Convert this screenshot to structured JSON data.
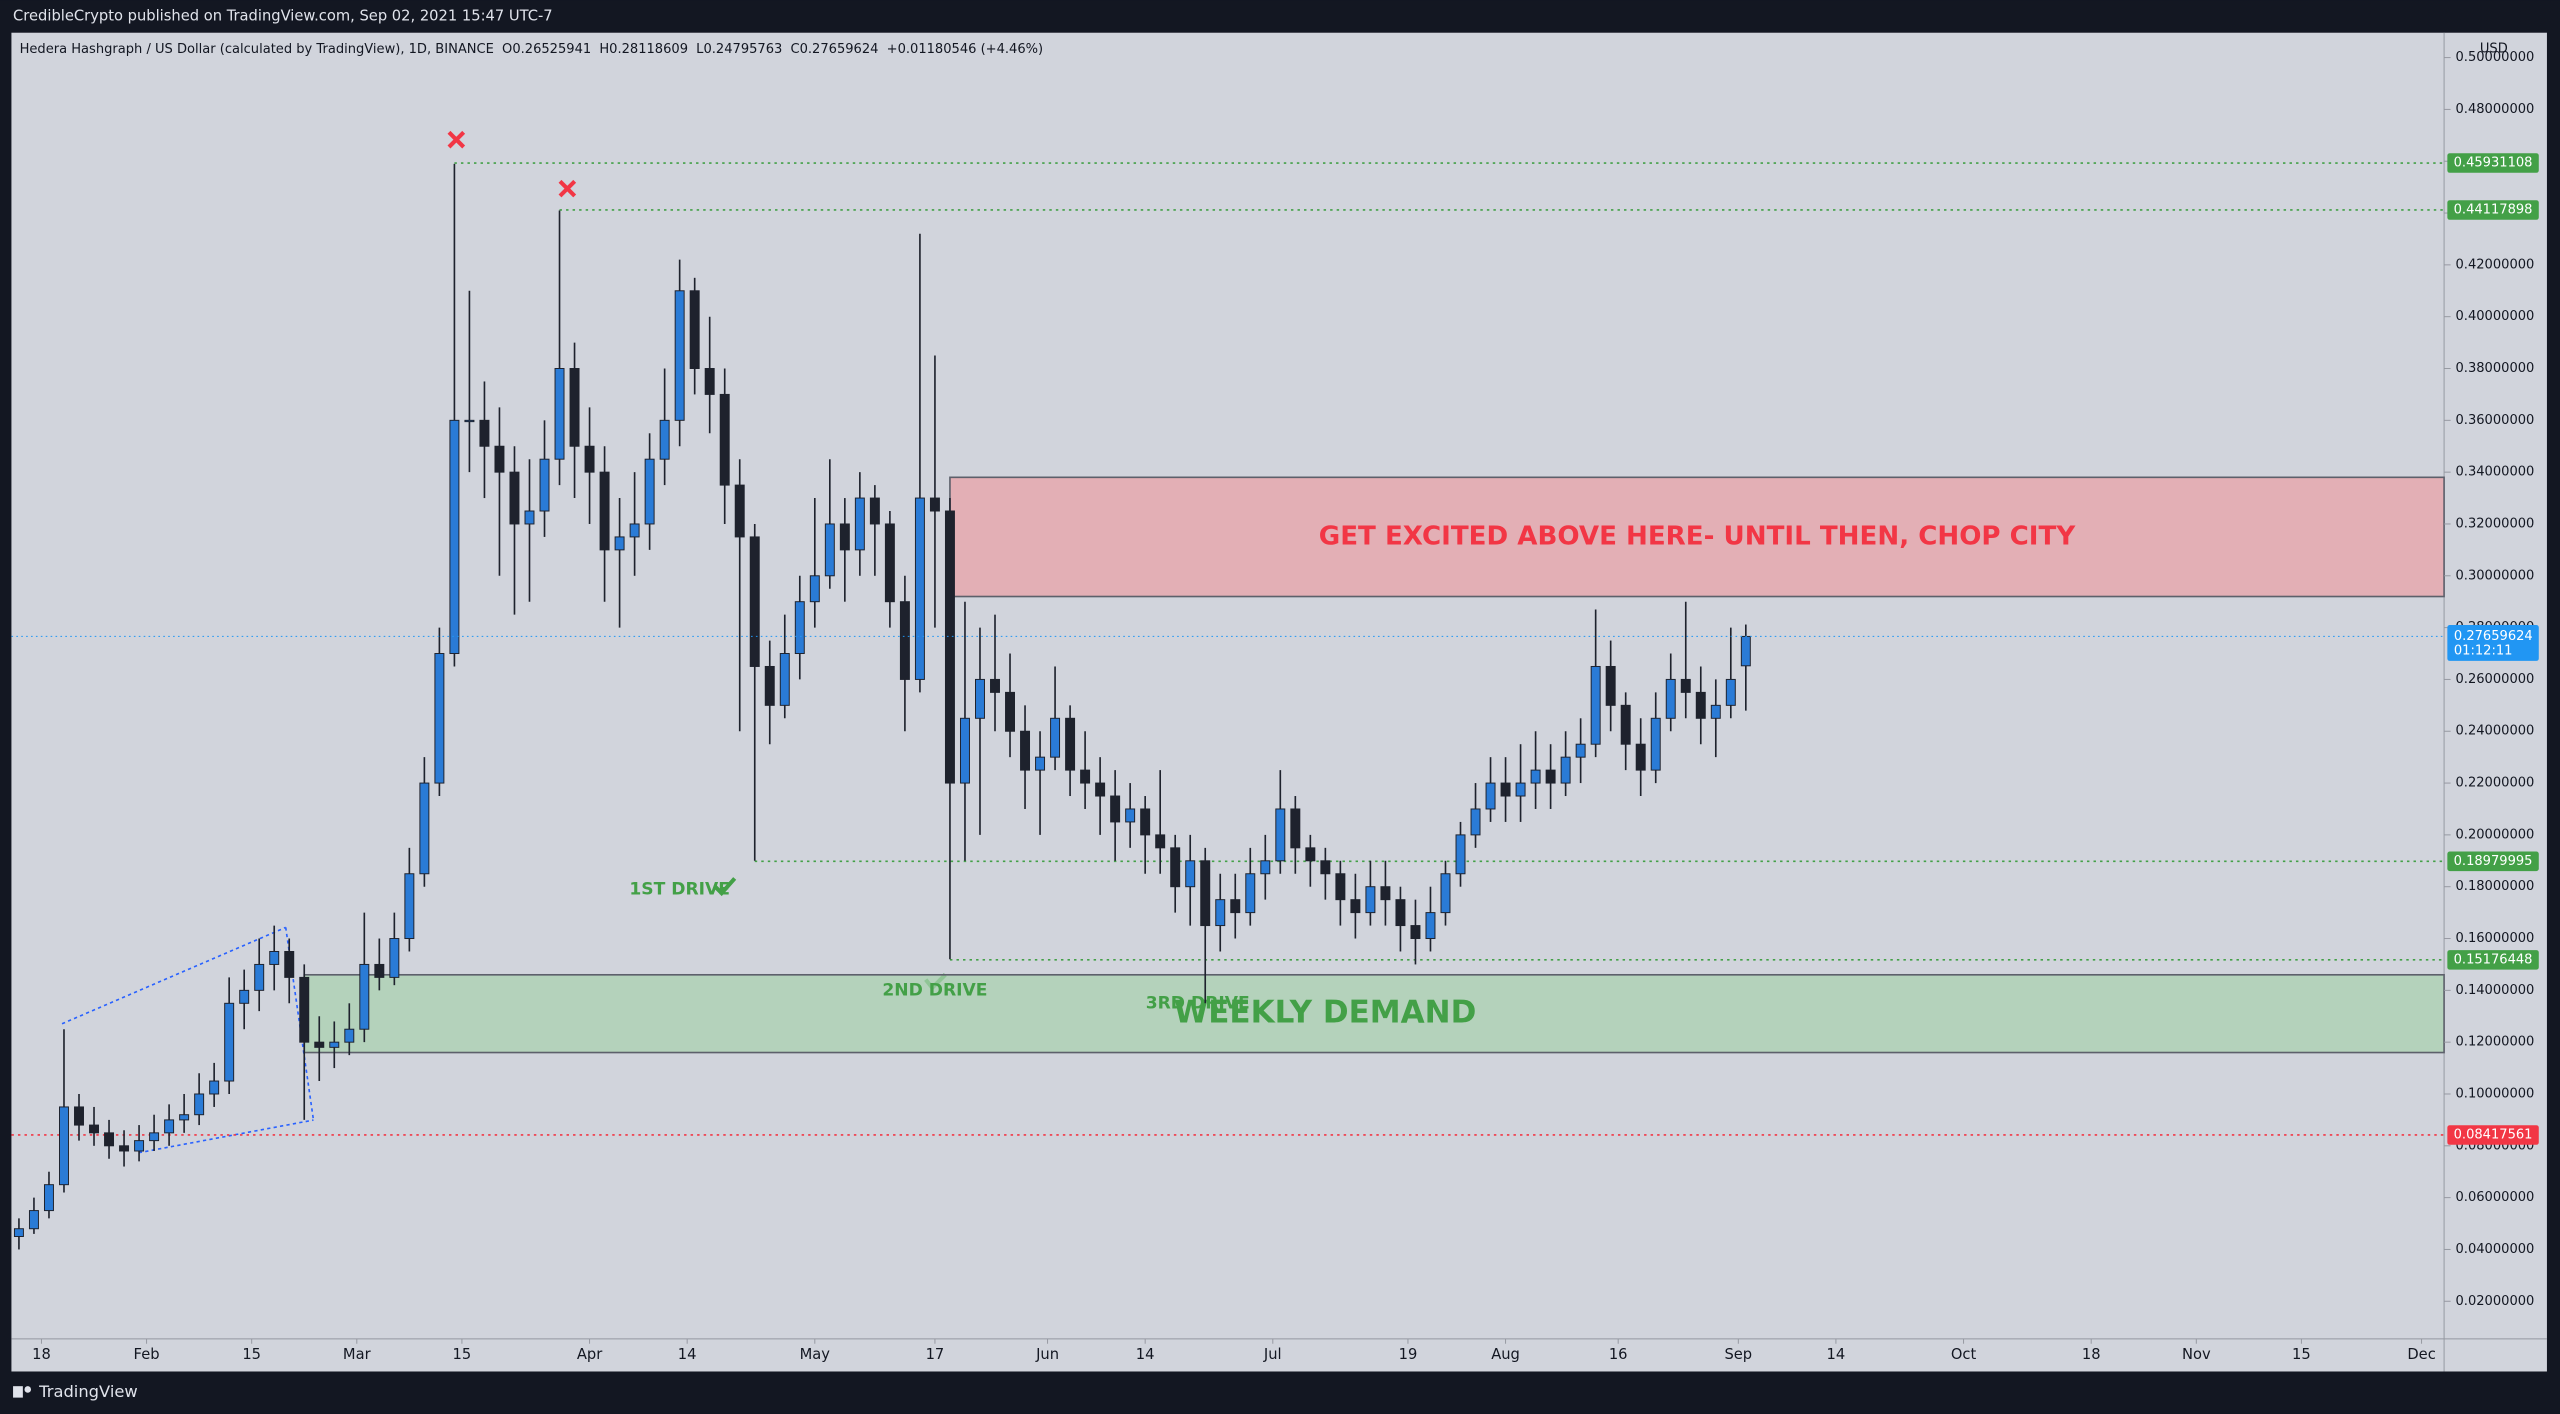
{
  "header": {
    "publisher": "CredibleCrypto published on TradingView.com, Sep 02, 2021 15:47 UTC-7"
  },
  "footer": {
    "brand": "TradingView"
  },
  "chart_data": {
    "type": "candlestick",
    "legend": {
      "symbol": "Hedera Hashgraph / US Dollar (calculated by TradingView), 1D, BINANCE",
      "o": "O",
      "h": "H",
      "l": "L",
      "c": "C",
      "change": "+0.01180546 (+4.46%)"
    },
    "currency": "USD",
    "countdown": "01:12:11",
    "up_color": "#2a7bd6",
    "down_color": "#1e222d",
    "wick_color": "#1e222d",
    "candles": {
      "x": [
        "2021-01-15",
        "2021-01-17",
        "2021-01-19",
        "2021-01-21",
        "2021-01-23",
        "2021-01-25",
        "2021-01-27",
        "2021-01-29",
        "2021-01-31",
        "2021-02-02",
        "2021-02-04",
        "2021-02-06",
        "2021-02-08",
        "2021-02-10",
        "2021-02-12",
        "2021-02-14",
        "2021-02-16",
        "2021-02-18",
        "2021-02-20",
        "2021-02-22",
        "2021-02-24",
        "2021-02-26",
        "2021-02-28",
        "2021-03-02",
        "2021-03-04",
        "2021-03-06",
        "2021-03-08",
        "2021-03-10",
        "2021-03-12",
        "2021-03-14",
        "2021-03-16",
        "2021-03-18",
        "2021-03-20",
        "2021-03-22",
        "2021-03-24",
        "2021-03-26",
        "2021-03-28",
        "2021-03-30",
        "2021-04-01",
        "2021-04-03",
        "2021-04-05",
        "2021-04-07",
        "2021-04-09",
        "2021-04-11",
        "2021-04-13",
        "2021-04-15",
        "2021-04-17",
        "2021-04-19",
        "2021-04-21",
        "2021-04-23",
        "2021-04-25",
        "2021-04-27",
        "2021-04-29",
        "2021-05-01",
        "2021-05-03",
        "2021-05-05",
        "2021-05-07",
        "2021-05-09",
        "2021-05-11",
        "2021-05-13",
        "2021-05-15",
        "2021-05-17",
        "2021-05-19",
        "2021-05-21",
        "2021-05-23",
        "2021-05-25",
        "2021-05-27",
        "2021-05-29",
        "2021-05-31",
        "2021-06-02",
        "2021-06-04",
        "2021-06-06",
        "2021-06-08",
        "2021-06-10",
        "2021-06-12",
        "2021-06-14",
        "2021-06-16",
        "2021-06-18",
        "2021-06-20",
        "2021-06-22",
        "2021-06-24",
        "2021-06-26",
        "2021-06-28",
        "2021-06-30",
        "2021-07-02",
        "2021-07-04",
        "2021-07-06",
        "2021-07-08",
        "2021-07-10",
        "2021-07-12",
        "2021-07-14",
        "2021-07-16",
        "2021-07-18",
        "2021-07-20",
        "2021-07-22",
        "2021-07-24",
        "2021-07-26",
        "2021-07-28",
        "2021-07-30",
        "2021-08-01",
        "2021-08-03",
        "2021-08-05",
        "2021-08-07",
        "2021-08-09",
        "2021-08-11",
        "2021-08-13",
        "2021-08-15",
        "2021-08-17",
        "2021-08-19",
        "2021-08-21",
        "2021-08-23",
        "2021-08-25",
        "2021-08-27",
        "2021-08-29",
        "2021-08-31",
        "2021-09-02"
      ],
      "open": [
        0.045,
        0.048,
        0.055,
        0.065,
        0.095,
        0.088,
        0.085,
        0.08,
        0.078,
        0.082,
        0.085,
        0.09,
        0.092,
        0.1,
        0.105,
        0.135,
        0.14,
        0.15,
        0.155,
        0.145,
        0.12,
        0.118,
        0.12,
        0.125,
        0.15,
        0.145,
        0.16,
        0.185,
        0.22,
        0.27,
        0.36,
        0.36,
        0.35,
        0.34,
        0.32,
        0.325,
        0.345,
        0.38,
        0.35,
        0.34,
        0.31,
        0.315,
        0.32,
        0.345,
        0.36,
        0.41,
        0.38,
        0.37,
        0.335,
        0.315,
        0.265,
        0.25,
        0.27,
        0.29,
        0.3,
        0.32,
        0.31,
        0.33,
        0.32,
        0.29,
        0.26,
        0.33,
        0.325,
        0.22,
        0.245,
        0.26,
        0.255,
        0.24,
        0.225,
        0.23,
        0.245,
        0.225,
        0.22,
        0.215,
        0.205,
        0.21,
        0.2,
        0.195,
        0.18,
        0.19,
        0.165,
        0.175,
        0.17,
        0.185,
        0.19,
        0.21,
        0.195,
        0.19,
        0.185,
        0.175,
        0.17,
        0.18,
        0.175,
        0.165,
        0.16,
        0.17,
        0.185,
        0.2,
        0.21,
        0.22,
        0.215,
        0.22,
        0.225,
        0.22,
        0.23,
        0.235,
        0.265,
        0.25,
        0.235,
        0.225,
        0.245,
        0.26,
        0.255,
        0.245,
        0.25,
        0.26525941
      ],
      "high": [
        0.052,
        0.06,
        0.07,
        0.125,
        0.1,
        0.095,
        0.09,
        0.086,
        0.088,
        0.092,
        0.096,
        0.1,
        0.108,
        0.112,
        0.145,
        0.148,
        0.16,
        0.165,
        0.16,
        0.15,
        0.13,
        0.128,
        0.135,
        0.17,
        0.16,
        0.17,
        0.195,
        0.23,
        0.28,
        0.459,
        0.41,
        0.375,
        0.365,
        0.35,
        0.345,
        0.36,
        0.441,
        0.39,
        0.365,
        0.35,
        0.33,
        0.34,
        0.355,
        0.38,
        0.422,
        0.415,
        0.4,
        0.38,
        0.345,
        0.32,
        0.275,
        0.285,
        0.3,
        0.33,
        0.345,
        0.33,
        0.34,
        0.335,
        0.325,
        0.3,
        0.432,
        0.385,
        0.33,
        0.29,
        0.28,
        0.285,
        0.27,
        0.25,
        0.24,
        0.265,
        0.25,
        0.24,
        0.23,
        0.225,
        0.22,
        0.215,
        0.225,
        0.2,
        0.2,
        0.195,
        0.185,
        0.185,
        0.195,
        0.2,
        0.225,
        0.215,
        0.2,
        0.195,
        0.19,
        0.185,
        0.19,
        0.19,
        0.18,
        0.175,
        0.18,
        0.19,
        0.205,
        0.22,
        0.23,
        0.23,
        0.235,
        0.24,
        0.235,
        0.24,
        0.245,
        0.287,
        0.275,
        0.255,
        0.245,
        0.255,
        0.27,
        0.29,
        0.265,
        0.26,
        0.28,
        0.28118609
      ],
      "low": [
        0.04,
        0.046,
        0.052,
        0.062,
        0.082,
        0.08,
        0.075,
        0.072,
        0.074,
        0.078,
        0.08,
        0.085,
        0.088,
        0.095,
        0.1,
        0.125,
        0.132,
        0.14,
        0.135,
        0.09,
        0.105,
        0.11,
        0.115,
        0.12,
        0.14,
        0.142,
        0.155,
        0.18,
        0.215,
        0.265,
        0.34,
        0.33,
        0.3,
        0.285,
        0.29,
        0.315,
        0.335,
        0.33,
        0.32,
        0.29,
        0.28,
        0.3,
        0.31,
        0.335,
        0.35,
        0.37,
        0.355,
        0.32,
        0.24,
        0.19,
        0.235,
        0.245,
        0.26,
        0.28,
        0.295,
        0.29,
        0.3,
        0.3,
        0.28,
        0.24,
        0.255,
        0.28,
        0.152,
        0.19,
        0.2,
        0.24,
        0.23,
        0.21,
        0.2,
        0.225,
        0.215,
        0.21,
        0.2,
        0.19,
        0.195,
        0.185,
        0.185,
        0.17,
        0.165,
        0.135,
        0.155,
        0.16,
        0.165,
        0.175,
        0.185,
        0.185,
        0.18,
        0.175,
        0.165,
        0.16,
        0.165,
        0.165,
        0.155,
        0.15,
        0.155,
        0.165,
        0.18,
        0.195,
        0.205,
        0.205,
        0.205,
        0.21,
        0.21,
        0.215,
        0.22,
        0.23,
        0.24,
        0.225,
        0.215,
        0.22,
        0.24,
        0.245,
        0.235,
        0.23,
        0.245,
        0.24795763
      ],
      "close": [
        0.048,
        0.055,
        0.065,
        0.095,
        0.088,
        0.085,
        0.08,
        0.078,
        0.082,
        0.085,
        0.09,
        0.092,
        0.1,
        0.105,
        0.135,
        0.14,
        0.15,
        0.155,
        0.145,
        0.12,
        0.118,
        0.12,
        0.125,
        0.15,
        0.145,
        0.16,
        0.185,
        0.22,
        0.27,
        0.36,
        0.36,
        0.35,
        0.34,
        0.32,
        0.325,
        0.345,
        0.38,
        0.35,
        0.34,
        0.31,
        0.315,
        0.32,
        0.345,
        0.36,
        0.41,
        0.38,
        0.37,
        0.335,
        0.315,
        0.265,
        0.25,
        0.27,
        0.29,
        0.3,
        0.32,
        0.31,
        0.33,
        0.32,
        0.29,
        0.26,
        0.33,
        0.325,
        0.22,
        0.245,
        0.26,
        0.255,
        0.24,
        0.225,
        0.23,
        0.245,
        0.225,
        0.22,
        0.215,
        0.205,
        0.21,
        0.2,
        0.195,
        0.18,
        0.19,
        0.165,
        0.175,
        0.17,
        0.185,
        0.19,
        0.21,
        0.195,
        0.19,
        0.185,
        0.175,
        0.17,
        0.18,
        0.175,
        0.165,
        0.16,
        0.17,
        0.185,
        0.2,
        0.21,
        0.22,
        0.215,
        0.22,
        0.225,
        0.22,
        0.23,
        0.235,
        0.265,
        0.25,
        0.235,
        0.225,
        0.245,
        0.26,
        0.255,
        0.245,
        0.25,
        0.26,
        0.27659624
      ]
    },
    "levels": [
      {
        "value": 0.45931108,
        "from": "2021-03-14",
        "color": "#43a047"
      },
      {
        "value": 0.44117898,
        "from": "2021-03-28",
        "color": "#43a047"
      },
      {
        "value": 0.18979995,
        "from": "2021-04-23",
        "color": "#43a047"
      },
      {
        "value": 0.15176448,
        "from": "2021-05-19",
        "color": "#43a047"
      },
      {
        "value": 0.08417561,
        "from": "2021-01-14",
        "color": "#f23645"
      }
    ],
    "zones": [
      {
        "label": "GET EXCITED ABOVE HERE- UNTIL THEN, CHOP CITY",
        "from": "2021-05-19",
        "low": 0.292,
        "high": 0.338,
        "color": "#e8a3a8",
        "text_color": "#f23645"
      },
      {
        "label": "WEEKLY DEMAND",
        "from": "2021-02-22",
        "low": 0.116,
        "high": 0.146,
        "color": "#a9d2b0",
        "text_color": "#43a047"
      }
    ],
    "annotations": [
      {
        "text": "1ST DRIVE",
        "x": "2021-04-13",
        "y": 0.179
      },
      {
        "text": "2ND DRIVE",
        "x": "2021-05-17",
        "y": 0.14
      },
      {
        "text": "3RD DRIVE",
        "x": "2021-06-21",
        "y": 0.135
      }
    ],
    "ylim": [
      0.0055,
      0.5096
    ],
    "yticks": [
      {
        "value": 0.02,
        "label": "0.02000000"
      },
      {
        "value": 0.04,
        "label": "0.04000000"
      },
      {
        "value": 0.06,
        "label": "0.06000000"
      },
      {
        "value": 0.08,
        "label": "0.08000000"
      },
      {
        "value": 0.1,
        "label": "0.10000000"
      },
      {
        "value": 0.12,
        "label": "0.12000000"
      },
      {
        "value": 0.14,
        "label": "0.14000000"
      },
      {
        "value": 0.16,
        "label": "0.16000000"
      },
      {
        "value": 0.18,
        "label": "0.18000000"
      },
      {
        "value": 0.2,
        "label": "0.20000000"
      },
      {
        "value": 0.22,
        "label": "0.22000000"
      },
      {
        "value": 0.24,
        "label": "0.24000000"
      },
      {
        "value": 0.26,
        "label": "0.26000000"
      },
      {
        "value": 0.28,
        "label": "0.28000000"
      },
      {
        "value": 0.3,
        "label": "0.30000000"
      },
      {
        "value": 0.32,
        "label": "0.32000000"
      },
      {
        "value": 0.34,
        "label": "0.34000000"
      },
      {
        "value": 0.36,
        "label": "0.36000000"
      },
      {
        "value": 0.38,
        "label": "0.38000000"
      },
      {
        "value": 0.4,
        "label": "0.40000000"
      },
      {
        "value": 0.42,
        "label": "0.42000000"
      },
      {
        "value": 0.44,
        "label": "0.44000000"
      },
      {
        "value": 0.46,
        "label": "0.46000000"
      },
      {
        "value": 0.48,
        "label": "0.48000000"
      },
      {
        "value": 0.5,
        "label": "0.50000000"
      }
    ],
    "xlim": [
      "2021-01-14",
      "2021-12-04"
    ],
    "xticks": [
      {
        "value": "2021-01-18",
        "label": "18"
      },
      {
        "value": "2021-02-01",
        "label": "Feb"
      },
      {
        "value": "2021-02-15",
        "label": "15"
      },
      {
        "value": "2021-03-01",
        "label": "Mar"
      },
      {
        "value": "2021-03-15",
        "label": "15"
      },
      {
        "value": "2021-04-01",
        "label": "Apr"
      },
      {
        "value": "2021-04-14",
        "label": "14"
      },
      {
        "value": "2021-05-01",
        "label": "May"
      },
      {
        "value": "2021-05-17",
        "label": "17"
      },
      {
        "value": "2021-06-01",
        "label": "Jun"
      },
      {
        "value": "2021-06-14",
        "label": "14"
      },
      {
        "value": "2021-07-01",
        "label": "Jul"
      },
      {
        "value": "2021-07-19",
        "label": "19"
      },
      {
        "value": "2021-08-01",
        "label": "Aug"
      },
      {
        "value": "2021-08-16",
        "label": "16"
      },
      {
        "value": "2021-09-01",
        "label": "Sep"
      },
      {
        "value": "2021-09-14",
        "label": "14"
      },
      {
        "value": "2021-10-01",
        "label": "Oct"
      },
      {
        "value": "2021-10-18",
        "label": "18"
      },
      {
        "value": "2021-11-01",
        "label": "Nov"
      },
      {
        "value": "2021-11-15",
        "label": "15"
      },
      {
        "value": "2021-12-01",
        "label": "Dec"
      }
    ],
    "grid": false
  }
}
